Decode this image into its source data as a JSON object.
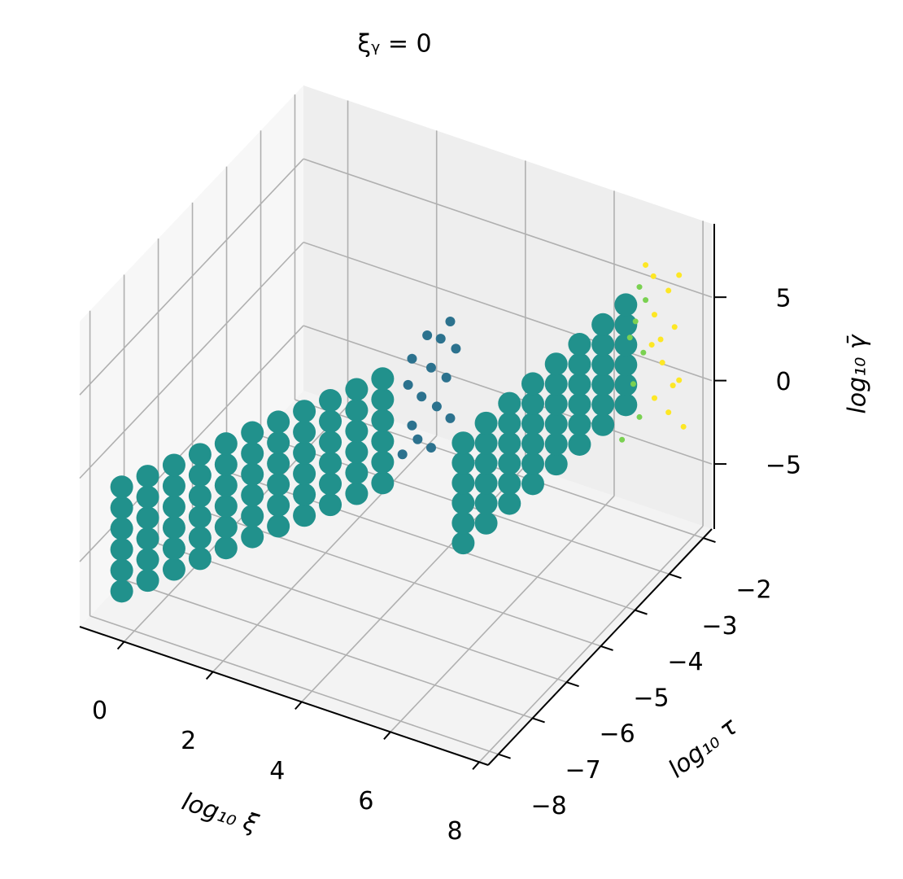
{
  "chart_data": {
    "type": "scatter3d",
    "title": "ξᵧ = 0",
    "xlabel": "log₁₀ ξ",
    "ylabel": "log₁₀ τ",
    "zlabel": "log₁₀ γ̄",
    "xlim": [
      -1,
      8.2
    ],
    "ylim": [
      -8.3,
      -1.75
    ],
    "zlim": [
      -8.9,
      9.4
    ],
    "xticks": [
      0,
      2,
      4,
      6,
      8
    ],
    "yticks": [
      {
        "value": -8,
        "label": "−8"
      },
      {
        "value": -7,
        "label": "−7"
      },
      {
        "value": -6,
        "label": "−6"
      },
      {
        "value": -5,
        "label": "−5"
      },
      {
        "value": -4,
        "label": "−4"
      },
      {
        "value": -3,
        "label": "−3"
      },
      {
        "value": -2,
        "label": "−2"
      }
    ],
    "zticks": [
      {
        "value": -5,
        "label": "−5"
      },
      0,
      5
    ],
    "grid": true,
    "series": [
      {
        "color": "#21918c",
        "marker_size": 14,
        "x": [
          -0.4,
          -0.13,
          0.14,
          0.41,
          0.68,
          0.95,
          1.22,
          1.49,
          1.76,
          2.03,
          2.3
        ],
        "y": [
          -7.85,
          -7.44,
          -7.02,
          -6.61,
          -6.2,
          -5.78,
          -5.37,
          -4.96,
          -4.55,
          -4.13,
          -3.72
        ],
        "z": [
          -7.2,
          -7.2,
          -7.2,
          -7.2,
          -7.2,
          -7.2,
          -7.2,
          -7.2,
          -7.2,
          -7.2,
          -7.2
        ]
      },
      {
        "color": "#21918c",
        "marker_size": 14,
        "x": [
          -0.4,
          -0.13,
          0.14,
          0.41,
          0.68,
          0.95,
          1.22,
          1.49,
          1.76,
          2.03,
          2.3
        ],
        "y": [
          -7.85,
          -7.44,
          -7.02,
          -6.61,
          -6.2,
          -5.78,
          -5.37,
          -4.96,
          -4.55,
          -4.13,
          -3.72
        ],
        "z": [
          -5.95,
          -5.95,
          -5.95,
          -5.95,
          -5.95,
          -5.95,
          -5.95,
          -5.95,
          -5.95,
          -5.95,
          -5.95
        ]
      },
      {
        "color": "#21918c",
        "marker_size": 14,
        "x": [
          -0.4,
          -0.13,
          0.14,
          0.41,
          0.68,
          0.95,
          1.22,
          1.49,
          1.76,
          2.03,
          2.3
        ],
        "y": [
          -7.85,
          -7.44,
          -7.02,
          -6.61,
          -6.2,
          -5.78,
          -5.37,
          -4.96,
          -4.55,
          -4.13,
          -3.72
        ],
        "z": [
          -4.7,
          -4.7,
          -4.7,
          -4.7,
          -4.7,
          -4.7,
          -4.7,
          -4.7,
          -4.7,
          -4.7,
          -4.7
        ]
      },
      {
        "color": "#21918c",
        "marker_size": 14,
        "x": [
          -0.4,
          -0.13,
          0.14,
          0.41,
          0.68,
          0.95,
          1.22,
          1.49,
          1.76,
          2.03,
          2.3
        ],
        "y": [
          -7.85,
          -7.44,
          -7.02,
          -6.61,
          -6.2,
          -5.78,
          -5.37,
          -4.96,
          -4.55,
          -4.13,
          -3.72
        ],
        "z": [
          -3.45,
          -3.45,
          -3.45,
          -3.45,
          -3.45,
          -3.45,
          -3.45,
          -3.45,
          -3.45,
          -3.45,
          -3.45
        ]
      },
      {
        "color": "#21918c",
        "marker_size": 14,
        "x": [
          -0.4,
          -0.13,
          0.14,
          0.41,
          0.68,
          0.95,
          1.22,
          1.49,
          1.76,
          2.03,
          2.3
        ],
        "y": [
          -7.85,
          -7.44,
          -7.02,
          -6.61,
          -6.2,
          -5.78,
          -5.37,
          -4.96,
          -4.55,
          -4.13,
          -3.72
        ],
        "z": [
          -2.2,
          -2.2,
          -2.2,
          -2.2,
          -2.2,
          -2.2,
          -2.2,
          -2.2,
          -2.2,
          -2.2,
          -2.2
        ]
      },
      {
        "color": "#21918c",
        "marker_size": 14,
        "x": [
          -0.4,
          -0.13,
          0.14,
          0.41,
          0.68,
          0.95,
          1.22,
          1.49,
          1.76,
          2.03,
          2.3
        ],
        "y": [
          -7.85,
          -7.44,
          -7.02,
          -6.61,
          -6.2,
          -5.78,
          -5.37,
          -4.96,
          -4.55,
          -4.13,
          -3.72
        ],
        "z": [
          -0.95,
          -0.95,
          -0.95,
          -0.95,
          -0.95,
          -0.95,
          -0.95,
          -0.95,
          -0.95,
          -0.95,
          -0.95
        ]
      },
      {
        "color": "#2c728e",
        "marker_size": 6,
        "x": [
          2.5,
          2.6,
          2.7,
          2.8,
          2.9,
          3.0,
          2.55,
          2.65,
          2.75,
          2.85,
          2.95,
          3.05,
          2.6,
          2.8,
          3.0
        ],
        "y": [
          -3.4,
          -3.25,
          -3.1,
          -2.95,
          -2.8,
          -2.65,
          -3.3,
          -3.15,
          -3.0,
          -2.85,
          -2.7,
          -2.55,
          -3.25,
          -2.95,
          -2.65
        ],
        "z": [
          -6.0,
          -4.5,
          -3.0,
          -1.5,
          0.0,
          0.8,
          -2.0,
          -5.5,
          0.5,
          -4.0,
          -2.5,
          -1.0,
          -0.5,
          -6.3,
          -5.0
        ]
      },
      {
        "color": "#21918c",
        "marker_size": 14,
        "x": [
          6.1,
          6.17,
          6.25,
          6.33,
          6.41,
          6.49,
          6.57,
          6.64
        ],
        "y": [
          -6.3,
          -5.72,
          -5.14,
          -4.56,
          -3.98,
          -3.4,
          -2.82,
          -2.24
        ],
        "z": [
          -1.8,
          -1.8,
          -1.8,
          -1.8,
          -1.8,
          -1.8,
          -1.8,
          -1.8
        ]
      },
      {
        "color": "#21918c",
        "marker_size": 14,
        "x": [
          6.1,
          6.17,
          6.25,
          6.33,
          6.41,
          6.49,
          6.57,
          6.64
        ],
        "y": [
          -6.3,
          -5.72,
          -5.14,
          -4.56,
          -3.98,
          -3.4,
          -2.82,
          -2.24
        ],
        "z": [
          -0.6,
          -0.6,
          -0.6,
          -0.6,
          -0.6,
          -0.6,
          -0.6,
          -0.6
        ]
      },
      {
        "color": "#21918c",
        "marker_size": 14,
        "x": [
          6.1,
          6.17,
          6.25,
          6.33,
          6.41,
          6.49,
          6.57,
          6.64
        ],
        "y": [
          -6.3,
          -5.72,
          -5.14,
          -4.56,
          -3.98,
          -3.4,
          -2.82,
          -2.24
        ],
        "z": [
          0.6,
          0.6,
          0.6,
          0.6,
          0.6,
          0.6,
          0.6,
          0.6
        ]
      },
      {
        "color": "#21918c",
        "marker_size": 14,
        "x": [
          6.1,
          6.17,
          6.25,
          6.33,
          6.41,
          6.49,
          6.57,
          6.64
        ],
        "y": [
          -6.3,
          -5.72,
          -5.14,
          -4.56,
          -3.98,
          -3.4,
          -2.82,
          -2.24
        ],
        "z": [
          1.8,
          1.8,
          1.8,
          1.8,
          1.8,
          1.8,
          1.8,
          1.8
        ]
      },
      {
        "color": "#21918c",
        "marker_size": 14,
        "x": [
          6.1,
          6.17,
          6.25,
          6.33,
          6.41,
          6.49,
          6.57,
          6.64
        ],
        "y": [
          -6.3,
          -5.72,
          -5.14,
          -4.56,
          -3.98,
          -3.4,
          -2.82,
          -2.24
        ],
        "z": [
          3.0,
          3.0,
          3.0,
          3.0,
          3.0,
          3.0,
          3.0,
          3.0
        ]
      },
      {
        "color": "#21918c",
        "marker_size": 14,
        "x": [
          6.1,
          6.17,
          6.25,
          6.33,
          6.41,
          6.49,
          6.57,
          6.64
        ],
        "y": [
          -6.3,
          -5.72,
          -5.14,
          -4.56,
          -3.98,
          -3.4,
          -2.82,
          -2.24
        ],
        "z": [
          4.2,
          4.2,
          4.2,
          4.2,
          4.2,
          4.2,
          4.2,
          4.2
        ]
      },
      {
        "color": "#7ad151",
        "marker_size": 3.5,
        "x": [
          6.8,
          6.75,
          6.85,
          6.7,
          6.9,
          6.8,
          6.6,
          6.7
        ],
        "y": [
          -2.05,
          -2.1,
          -2.0,
          -2.1,
          -2.0,
          -2.05,
          -2.3,
          -2.2
        ],
        "z": [
          5.0,
          3.0,
          1.0,
          -0.8,
          4.2,
          -2.8,
          -3.8,
          2.2
        ]
      },
      {
        "color": "#fde725",
        "marker_size": 3.5,
        "x": [
          7.0,
          7.3,
          7.1,
          7.4,
          7.0,
          7.2,
          7.5,
          7.1,
          7.3,
          7.6,
          6.9,
          7.5,
          7.2,
          7.4
        ],
        "y": [
          -1.9,
          -1.85,
          -2.0,
          -1.8,
          -1.95,
          -1.9,
          -1.8,
          -2.0,
          -1.85,
          -1.8,
          -2.0,
          -1.8,
          -1.95,
          -1.85
        ],
        "z": [
          5.5,
          4.8,
          3.5,
          2.6,
          1.5,
          0.5,
          -0.5,
          -1.5,
          -2.5,
          -3.2,
          6.3,
          5.8,
          2.0,
          -0.8
        ]
      }
    ]
  }
}
